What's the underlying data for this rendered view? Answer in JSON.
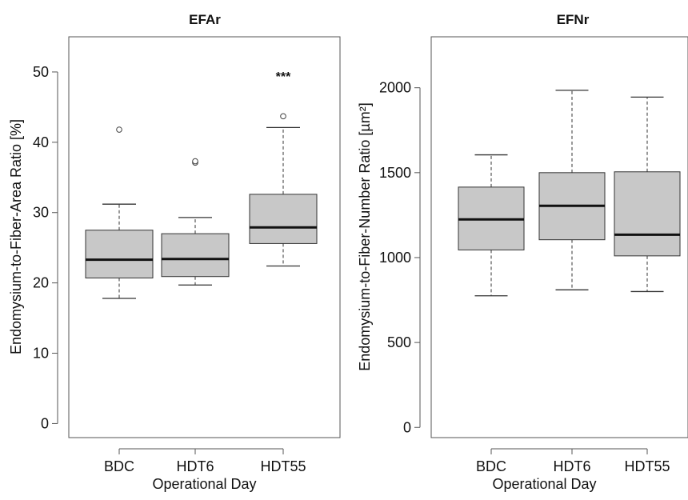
{
  "chart_data": [
    {
      "type": "box",
      "title": "EFAr",
      "xlabel": "Operational Day",
      "ylabel": "Endomysium-to-Fiber-Area Ratio [%]",
      "ylim": [
        -2,
        55
      ],
      "yticks": [
        0,
        10,
        20,
        30,
        40,
        50
      ],
      "categories": [
        "BDC",
        "HDT6",
        "HDT55"
      ],
      "boxes": [
        {
          "whisker_low": 17.8,
          "q1": 20.7,
          "median": 23.3,
          "q3": 27.5,
          "whisker_high": 31.2,
          "outliers": [
            41.8
          ]
        },
        {
          "whisker_low": 19.7,
          "q1": 20.9,
          "median": 23.4,
          "q3": 27.0,
          "whisker_high": 29.3,
          "outliers": [
            37.1,
            37.3
          ]
        },
        {
          "whisker_low": 22.4,
          "q1": 25.6,
          "median": 27.9,
          "q3": 32.6,
          "whisker_high": 42.1,
          "outliers": [
            43.7
          ]
        }
      ],
      "annotations": [
        {
          "category": "HDT55",
          "text": "***"
        }
      ]
    },
    {
      "type": "box",
      "title": "EFNr",
      "xlabel": "Operational Day",
      "ylabel": "Endomysium-to-Fiber-Number Ratio [µm²]",
      "ylim": [
        -60,
        2300
      ],
      "yticks": [
        0,
        500,
        1000,
        1500,
        2000
      ],
      "categories": [
        "BDC",
        "HDT6",
        "HDT55"
      ],
      "boxes": [
        {
          "whisker_low": 775,
          "q1": 1045,
          "median": 1225,
          "q3": 1415,
          "whisker_high": 1605,
          "outliers": []
        },
        {
          "whisker_low": 810,
          "q1": 1105,
          "median": 1305,
          "q3": 1500,
          "whisker_high": 1985,
          "outliers": []
        },
        {
          "whisker_low": 800,
          "q1": 1010,
          "median": 1135,
          "q3": 1505,
          "whisker_high": 1945,
          "outliers": []
        }
      ],
      "annotations": []
    }
  ],
  "colors": {
    "box_fill": "#c8c8c8",
    "stroke": "#333333",
    "median": "#111111"
  }
}
